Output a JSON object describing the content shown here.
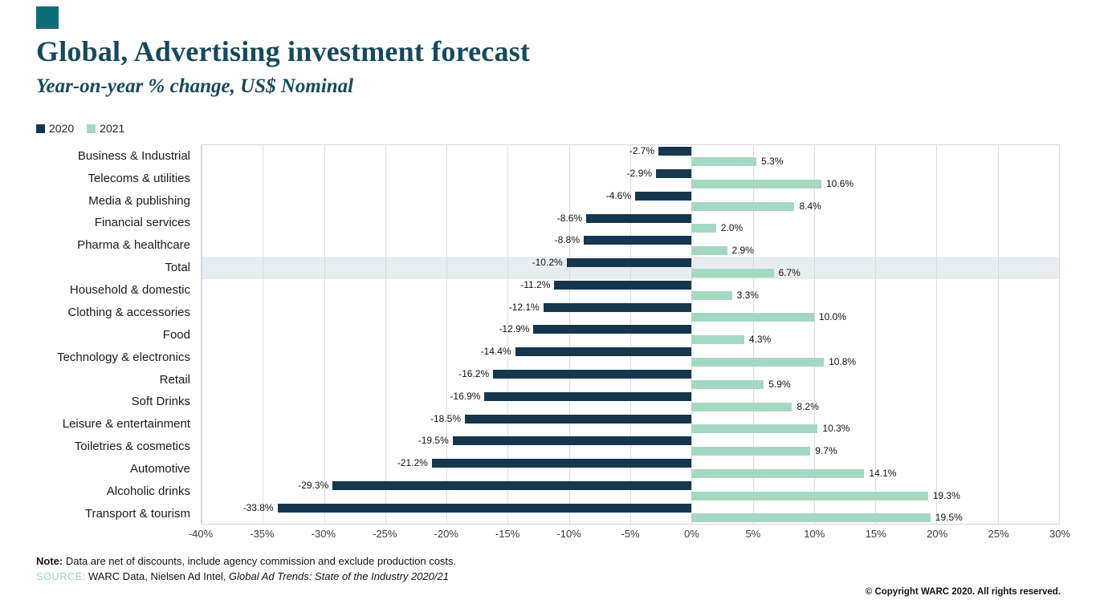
{
  "brand": {
    "accent_color": "#0e6e78"
  },
  "header": {
    "title": "Global, Advertising investment forecast",
    "subtitle": "Year-on-year % change, US$ Nominal",
    "title_color": "#17495d"
  },
  "legend": [
    {
      "label": "2020",
      "color": "#16364d"
    },
    {
      "label": "2021",
      "color": "#a5d8c2"
    }
  ],
  "chart_data": {
    "type": "bar",
    "orientation": "horizontal",
    "title": "Global, Advertising investment forecast",
    "subtitle": "Year-on-year % change, US$ Nominal",
    "categories": [
      "Business & Industrial",
      "Telecoms & utilities",
      "Media & publishing",
      "Financial services",
      "Pharma & healthcare",
      "Total",
      "Household & domestic",
      "Clothing & accessories",
      "Food",
      "Technology & electronics",
      "Retail",
      "Soft Drinks",
      "Leisure & entertainment",
      "Toiletries & cosmetics",
      "Automotive",
      "Alcoholic drinks",
      "Transport & tourism"
    ],
    "series": [
      {
        "name": "2020",
        "color": "#16364d",
        "values": [
          -2.7,
          -2.9,
          -4.6,
          -8.6,
          -8.8,
          -10.2,
          -11.2,
          -12.1,
          -12.9,
          -14.4,
          -16.2,
          -16.9,
          -18.5,
          -19.5,
          -21.2,
          -29.3,
          -33.8
        ]
      },
      {
        "name": "2021",
        "color": "#a5d8c2",
        "values": [
          5.3,
          10.6,
          8.4,
          2.0,
          2.9,
          6.7,
          3.3,
          10.0,
          4.3,
          10.8,
          5.9,
          8.2,
          10.3,
          9.7,
          14.1,
          19.3,
          19.5
        ]
      }
    ],
    "xlim": [
      -40,
      30
    ],
    "ticks": [
      -40,
      -35,
      -30,
      -25,
      -20,
      -15,
      -10,
      -5,
      0,
      5,
      10,
      15,
      20,
      25,
      30
    ],
    "tick_suffix": "%",
    "value_suffix": "%",
    "grid": true,
    "legend_position": "top-left",
    "highlight_category": "Total",
    "highlight_color": "#e8edf2",
    "gridline_color": "#d9dcde"
  },
  "footer": {
    "note_label": "Note:",
    "note_text": " Data are net of discounts, include agency commission and exclude production costs.",
    "source_label": "SOURCE:",
    "source_label_color": "#9fd4bf",
    "source_text": " WARC Data, Nielsen Ad Intel, ",
    "source_italic": "Global Ad Trends: State of the Industry 2020/21",
    "copyright": "© Copyright WARC 2020. All rights reserved."
  }
}
